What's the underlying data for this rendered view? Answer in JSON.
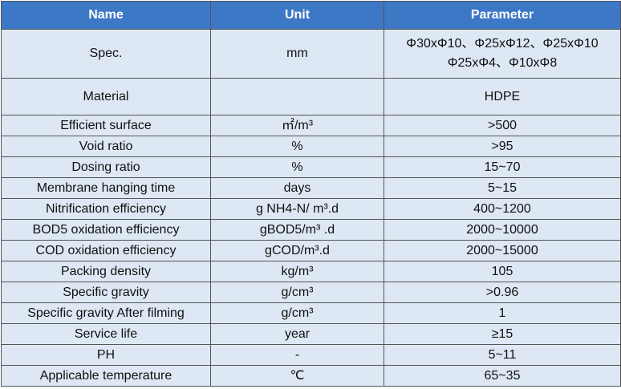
{
  "table": {
    "header": [
      "Name",
      "Unit",
      "Parameter"
    ],
    "rows": [
      [
        "Spec.",
        "mm",
        [
          "Φ30xΦ10、Φ25xΦ12、Φ25xΦ10",
          "Φ25xΦ4、Φ10xΦ8"
        ]
      ],
      [
        "Material",
        null,
        "HDPE"
      ],
      [
        "Efficient surface",
        "㎡/m³",
        ">500"
      ],
      [
        "Void ratio",
        "%",
        ">95"
      ],
      [
        "Dosing ratio",
        "%",
        "15~70"
      ],
      [
        "Membrane hanging time",
        "days",
        "5~15"
      ],
      [
        "Nitrification efficiency",
        "g NH4-N/ m³.d",
        "400~1200"
      ],
      [
        "BOD5 oxidation efficiency",
        "gBOD5/m³ .d",
        "2000~10000"
      ],
      [
        "COD oxidation efficiency",
        "gCOD/m³.d",
        "2000~15000"
      ],
      [
        "Packing density",
        "kg/m³",
        "105"
      ],
      [
        "Specific gravity",
        "g/cm³",
        ">0.96"
      ],
      [
        "Specific gravity After filming",
        "g/cm³",
        "1"
      ],
      [
        "Service life",
        "year",
        "≥15"
      ],
      [
        "PH",
        "-",
        "5~11"
      ],
      [
        "Applicable temperature",
        "℃",
        "65~35"
      ]
    ]
  }
}
